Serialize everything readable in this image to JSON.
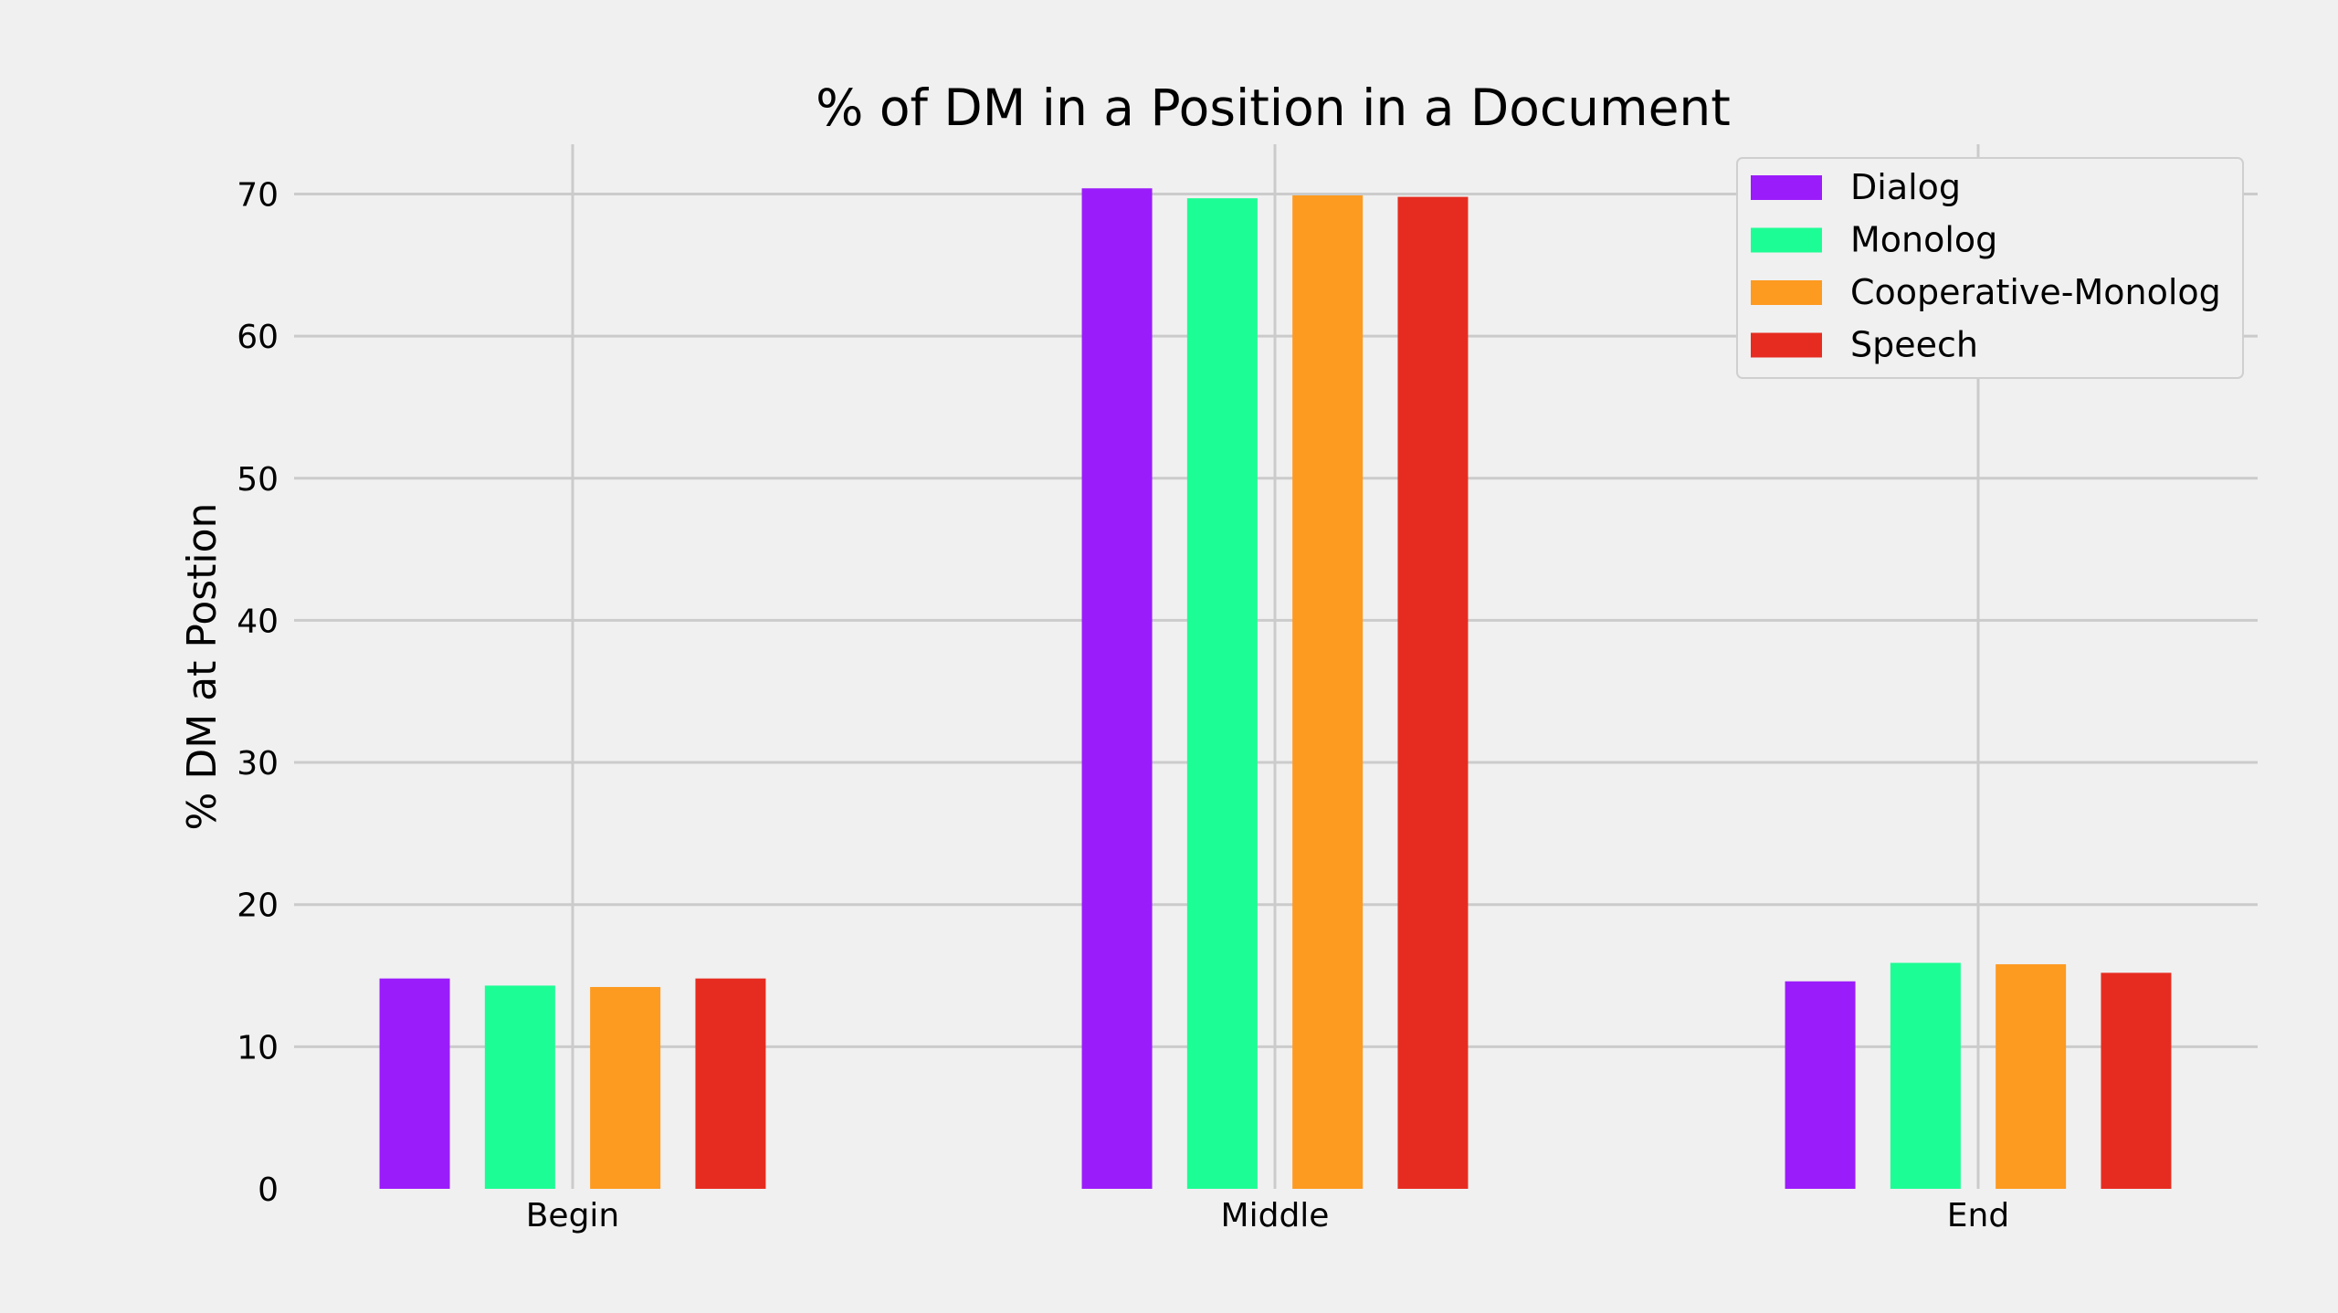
{
  "chart_data": {
    "type": "bar",
    "title": "% of DM in a Position in a Document",
    "xlabel": "",
    "ylabel": "% DM at Postion",
    "categories": [
      "Begin",
      "Middle",
      "End"
    ],
    "ylim": [
      0,
      73.5
    ],
    "yticks": [
      0,
      10,
      20,
      30,
      40,
      50,
      60,
      70
    ],
    "grid": true,
    "legend_position": "top-right",
    "series": [
      {
        "name": "Dialog",
        "color": "#9b1cfb",
        "values": [
          14.8,
          70.4,
          14.6
        ]
      },
      {
        "name": "Monolog",
        "color": "#1dfd95",
        "values": [
          14.3,
          69.7,
          15.9
        ]
      },
      {
        "name": "Cooperative-Monolog",
        "color": "#fd9a20",
        "values": [
          14.2,
          69.9,
          15.8
        ]
      },
      {
        "name": "Speech",
        "color": "#e62c20",
        "values": [
          14.8,
          69.8,
          15.2
        ]
      }
    ]
  }
}
